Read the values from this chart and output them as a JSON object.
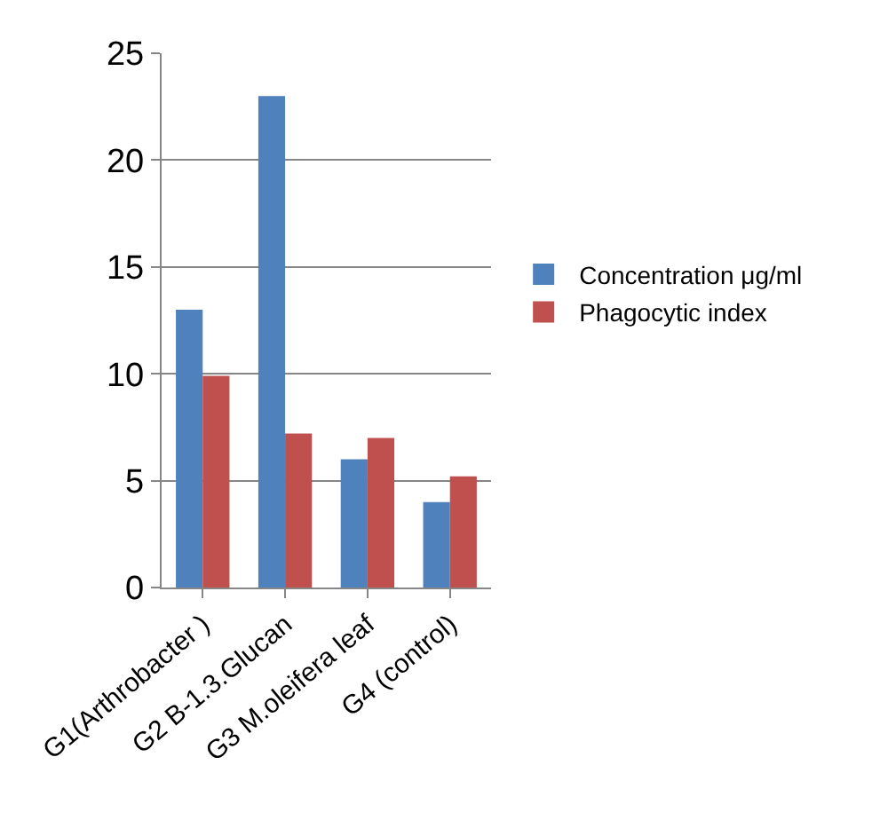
{
  "chart_data": {
    "type": "bar",
    "categories": [
      "G1(Arthrobacter )",
      "G2 B-1.3.Glucan",
      "G3 M.oleifera leaf",
      "G4 (control)"
    ],
    "series": [
      {
        "name": "Concentration μg/ml",
        "color": "#4f81bd",
        "values": [
          13,
          23,
          6,
          4
        ]
      },
      {
        "name": "Phagocytic index",
        "color": "#c0504d",
        "values": [
          9.9,
          7.2,
          7,
          5.2
        ]
      }
    ],
    "ylim": [
      0,
      25
    ],
    "yticks": [
      0,
      5,
      10,
      15,
      20,
      25
    ],
    "grid": "y",
    "legend": "right"
  }
}
